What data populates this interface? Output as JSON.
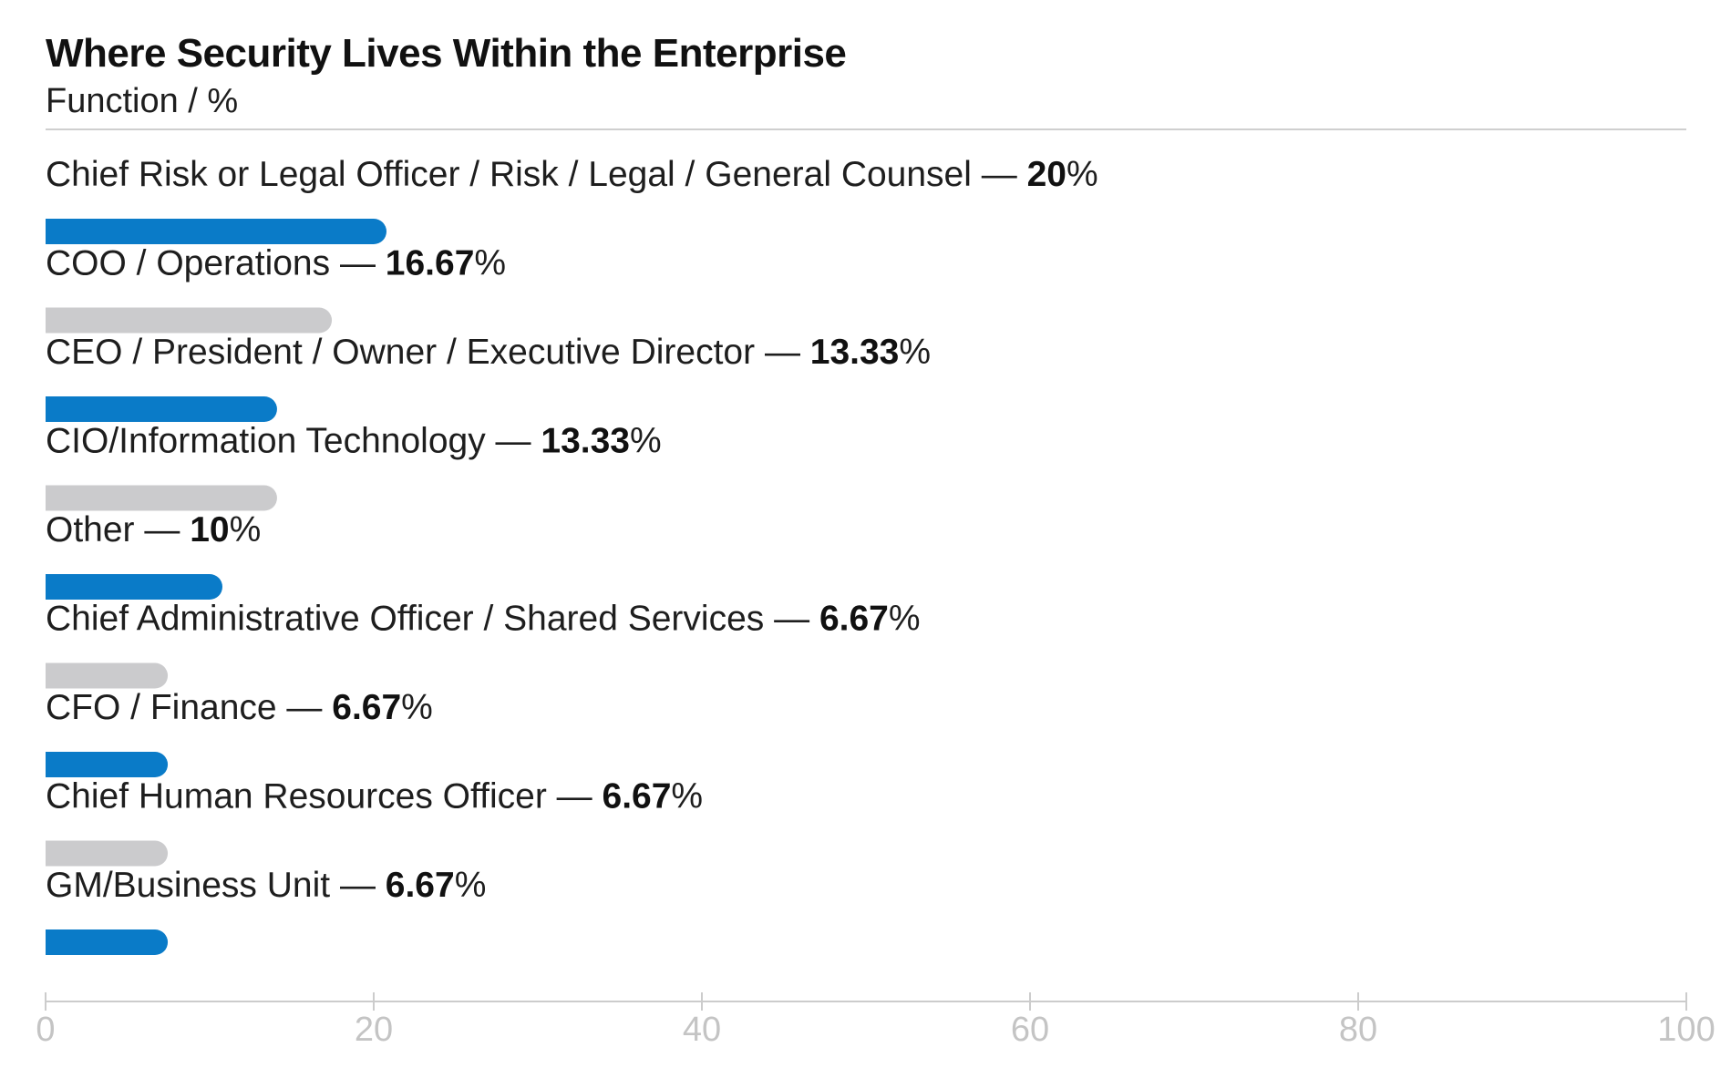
{
  "chart_data": {
    "type": "bar",
    "orientation": "horizontal",
    "title": "Where Security Lives Within the Enterprise",
    "subtitle": "Function / %",
    "categories": [
      "Chief Risk or Legal Officer / Risk / Legal / General Counsel",
      "COO / Operations",
      "CEO / President / Owner / Executive Director",
      "CIO/Information Technology",
      "Other",
      "Chief Administrative Officer / Shared Services",
      "CFO / Finance",
      "Chief Human Resources Officer",
      "GM/Business Unit"
    ],
    "values": [
      20,
      16.67,
      13.33,
      13.33,
      10,
      6.67,
      6.67,
      6.67,
      6.67
    ],
    "value_labels": [
      "20",
      "16.67",
      "13.33",
      "13.33",
      "10",
      "6.67",
      "6.67",
      "6.67",
      "6.67"
    ],
    "separator": " — ",
    "unit": "%",
    "xlim": [
      0,
      100
    ],
    "xticks": [
      0,
      20,
      40,
      60,
      80,
      100
    ],
    "xlabel": "",
    "ylabel": "",
    "grid": false,
    "legend": "none",
    "colors": [
      "#0a7bc8",
      "#cbcbcd"
    ]
  }
}
